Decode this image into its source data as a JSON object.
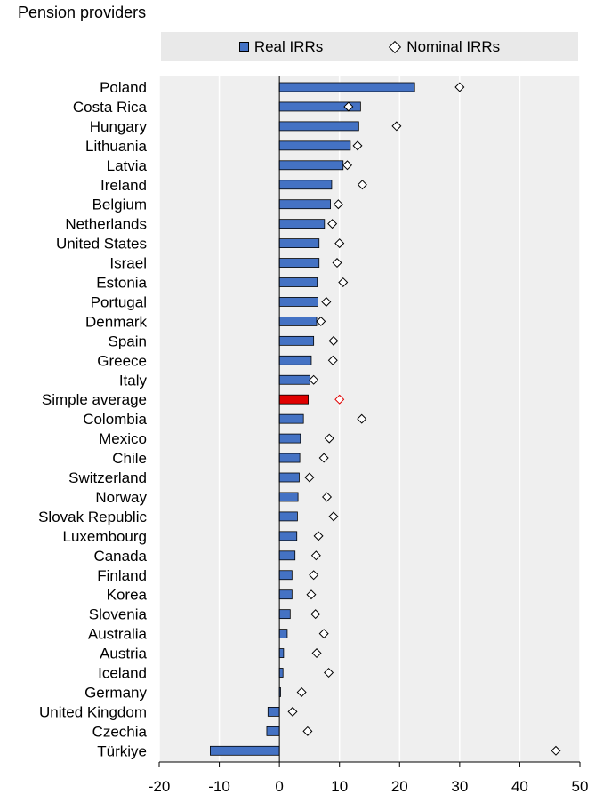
{
  "chart_data": {
    "type": "bar",
    "subtitle": "Pension providers",
    "legend": [
      "Real IRRs",
      "Nominal IRRs"
    ],
    "categories": [
      "Poland",
      "Costa Rica",
      "Hungary",
      "Lithuania",
      "Latvia",
      "Ireland",
      "Belgium",
      "Netherlands",
      "United States",
      "Israel",
      "Estonia",
      "Portugal",
      "Denmark",
      "Spain",
      "Greece",
      "Italy",
      "Simple average",
      "Colombia",
      "Mexico",
      "Chile",
      "Switzerland",
      "Norway",
      "Slovak Republic",
      "Luxembourg",
      "Canada",
      "Finland",
      "Korea",
      "Slovenia",
      "Australia",
      "Austria",
      "Iceland",
      "Germany",
      "United Kingdom",
      "Czechia",
      "Türkiye"
    ],
    "series": [
      {
        "name": "Real IRRs",
        "values": [
          22.5,
          13.5,
          13.2,
          11.8,
          10.6,
          8.7,
          8.5,
          7.5,
          6.6,
          6.6,
          6.3,
          6.4,
          6.2,
          5.7,
          5.3,
          5.1,
          4.8,
          4.0,
          3.5,
          3.4,
          3.3,
          3.1,
          3.0,
          2.9,
          2.6,
          2.1,
          2.1,
          1.8,
          1.3,
          0.7,
          0.6,
          0.2,
          -1.9,
          -2.1,
          -11.5
        ]
      },
      {
        "name": "Nominal IRRs",
        "values": [
          30.0,
          11.5,
          19.5,
          13.0,
          11.3,
          13.8,
          9.8,
          8.8,
          10.0,
          9.6,
          10.6,
          7.8,
          6.9,
          9.0,
          8.9,
          5.7,
          10.0,
          13.7,
          8.3,
          7.4,
          5.0,
          7.9,
          9.0,
          6.5,
          6.1,
          5.7,
          5.3,
          6.0,
          7.4,
          6.2,
          8.2,
          3.7,
          2.2,
          4.7,
          46.0
        ]
      }
    ],
    "highlight_category": "Simple average",
    "xlim": [
      -20,
      50
    ],
    "xticks": [
      -20,
      -10,
      0,
      10,
      20,
      30,
      40,
      50
    ],
    "colors": {
      "bar": "#4472c4",
      "highlight": "#e00000",
      "plot_bg": "#efefef",
      "grid": "#ffffff"
    }
  }
}
